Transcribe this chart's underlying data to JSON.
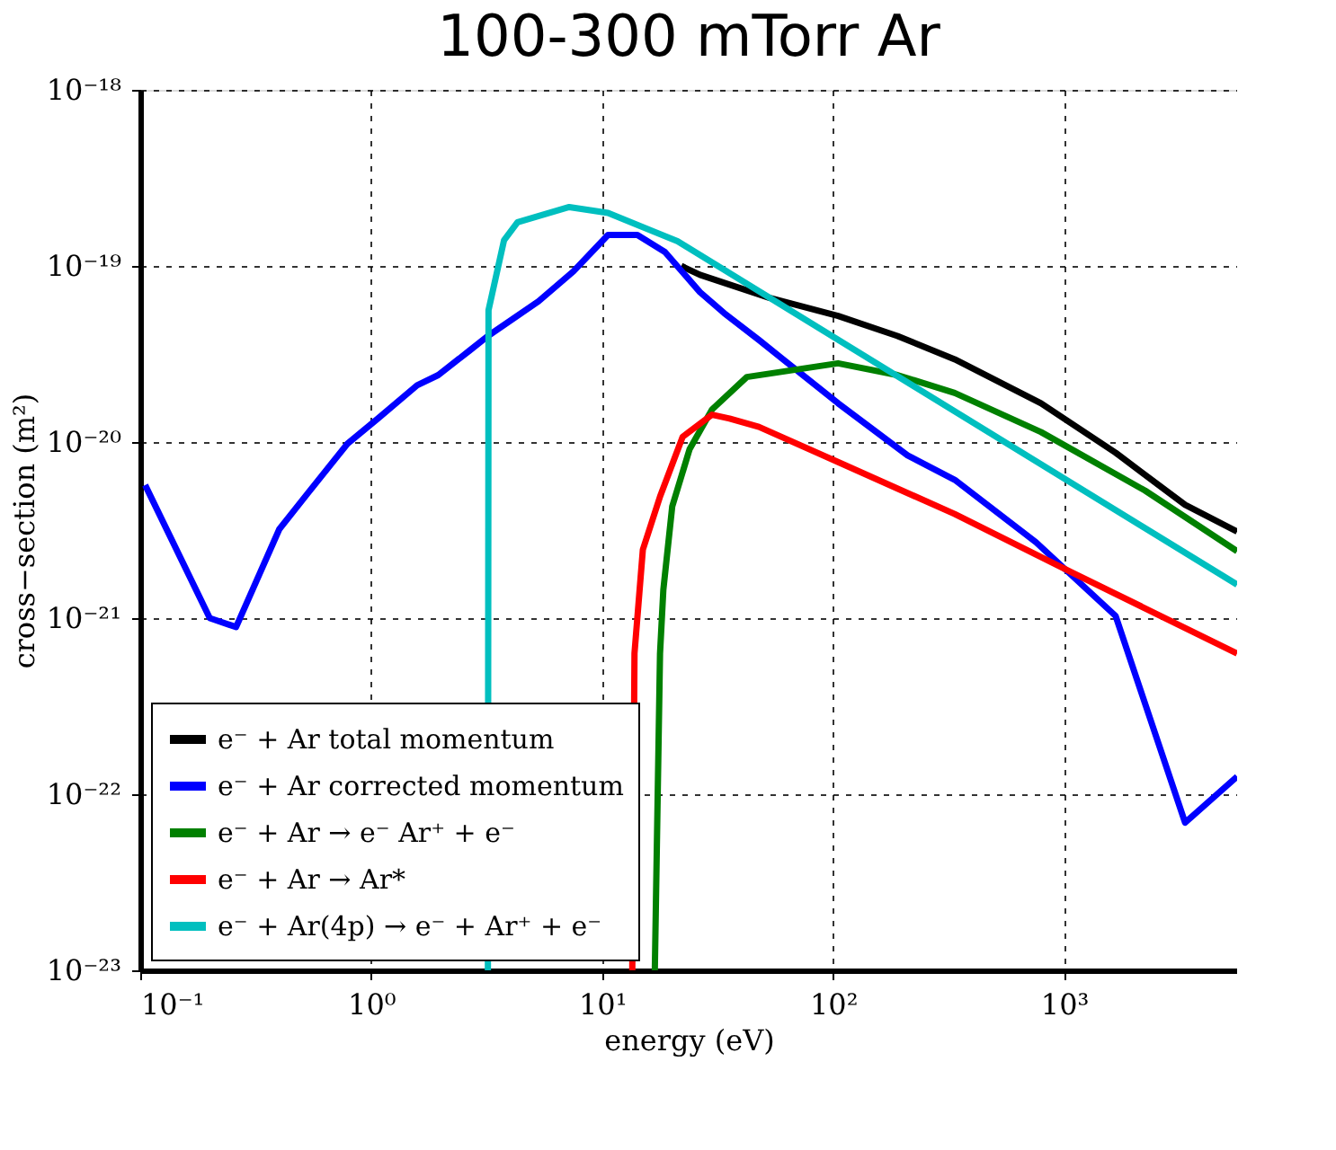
{
  "chart_data": {
    "type": "line",
    "title": "100-300 mTorr Ar",
    "xlabel": "energy (eV)",
    "ylabel": "cross−section (m²)",
    "log": "xy",
    "grid": true,
    "legend": "bottom left",
    "line_style": "solid",
    "marker": "none",
    "xlim": [
      0.1,
      5610
    ],
    "ylim": [
      1e-23,
      1e-18
    ],
    "xticks": [
      {
        "value": 0.1,
        "label": "10⁻¹"
      },
      {
        "value": 1,
        "label": "10⁰"
      },
      {
        "value": 10,
        "label": "10¹"
      },
      {
        "value": 100,
        "label": "10²"
      },
      {
        "value": 1000,
        "label": "10³"
      }
    ],
    "yticks": [
      {
        "value": 1e-23,
        "label": "10⁻²³"
      },
      {
        "value": 1e-22,
        "label": "10⁻²²"
      },
      {
        "value": 1e-21,
        "label": "10⁻²¹"
      },
      {
        "value": 1e-20,
        "label": "10⁻²⁰"
      },
      {
        "value": 1e-19,
        "label": "10⁻¹⁹"
      },
      {
        "value": 1e-18,
        "label": "10⁻¹⁸"
      }
    ],
    "series": [
      {
        "name": "e⁻ + Ar total momentum",
        "color": "#000000",
        "x": [
          22,
          26.5,
          52.8,
          105,
          190,
          336,
          794,
          1670,
          3340,
          5610
        ],
        "values": [
          1e-19,
          8.9e-20,
          6.6e-20,
          5.2e-20,
          4e-20,
          2.95e-20,
          1.66e-20,
          8.7e-21,
          4.4e-21,
          3.1e-21
        ]
      },
      {
        "name": "e⁻ + Ar corrected momentum",
        "color": "#0000ff",
        "x": [
          0.105,
          0.2,
          0.26,
          0.4,
          0.53,
          0.79,
          1.07,
          1.58,
          1.95,
          2.66,
          3.2,
          5.3,
          7.5,
          10.6,
          14.2,
          18.7,
          26.5,
          33.7,
          47.7,
          59.7,
          105,
          210,
          336,
          755,
          1670,
          3340,
          5610
        ],
        "values": [
          5.7e-21,
          1e-21,
          8.9e-22,
          3.2e-21,
          5.1e-21,
          9.8e-21,
          1.36e-20,
          2.1e-20,
          2.4e-20,
          3.3e-20,
          4e-20,
          6.3e-20,
          9.3e-20,
          1.5e-19,
          1.5e-19,
          1.2e-19,
          7.1e-20,
          5.4e-20,
          3.8e-20,
          3e-20,
          1.66e-20,
          8.4e-21,
          6.1e-21,
          2.7e-21,
          1.03e-21,
          6.9e-23,
          1.26e-22
        ]
      },
      {
        "name": "e⁻ + Ar → e⁻  Ar⁺ + e⁻",
        "color": "#008000",
        "x": [
          16.9,
          17.8,
          18.4,
          20.1,
          23.9,
          29.9,
          42.3,
          105,
          190,
          336,
          794,
          2240,
          5610
        ],
        "values": [
          1e-23,
          6.3e-22,
          1.45e-21,
          4.3e-21,
          9.1e-21,
          1.53e-20,
          2.34e-20,
          2.8e-20,
          2.4e-20,
          1.9e-20,
          1.14e-20,
          5.3e-21,
          2.4e-21
        ]
      },
      {
        "name": "e⁻ + Ar → Ar*",
        "color": "#ff0000",
        "x": [
          13.5,
          13.8,
          15.0,
          17.8,
          22.3,
          29.9,
          35.6,
          47.7,
          105,
          336,
          1070,
          5610
        ],
        "values": [
          1e-23,
          6.3e-22,
          2.45e-21,
          4.9e-21,
          1.07e-20,
          1.43e-20,
          1.36e-20,
          1.22e-20,
          7.7e-21,
          3.9e-21,
          1.83e-21,
          6.3e-22
        ]
      },
      {
        "name": "e⁻ + Ar(4p) → e⁻ + Ar⁺ + e⁻",
        "color": "#00bfbf",
        "x": [
          3.2,
          3.22,
          3.76,
          4.3,
          7.2,
          10.6,
          21.2,
          5610
        ],
        "values": [
          1e-23,
          5.6e-20,
          1.4e-19,
          1.77e-19,
          2.16e-19,
          2e-19,
          1.38e-19,
          1.55e-21
        ]
      }
    ]
  }
}
